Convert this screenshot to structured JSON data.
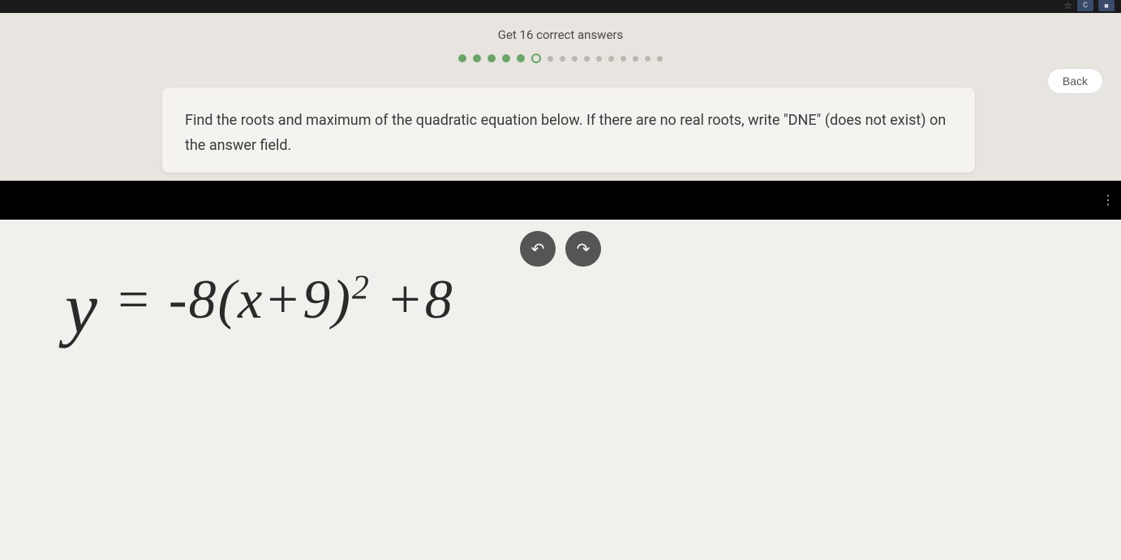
{
  "browser": {
    "star": "☆",
    "tab1": "C",
    "tab2": "■"
  },
  "quiz": {
    "goal_text": "Get 16 correct answers",
    "back_label": "Back",
    "progress": {
      "completed": 5,
      "current_index": 5,
      "total": 16
    }
  },
  "question": {
    "text": "Find the roots and maximum of the quadratic equation below. If there are no real roots, write \"DNE\" (does not exist) on the answer field."
  },
  "toolbar": {
    "undo": "↶",
    "redo": "↷",
    "more": "⋮"
  },
  "handwriting": {
    "equation": "y = -8(x+9)² +8"
  },
  "colors": {
    "header_bg": "#e8e5e0",
    "card_bg": "#f5f3ef",
    "progress_green": "#6ba668",
    "drawing_bg": "#f2f0ec",
    "button_gray": "#555555"
  }
}
